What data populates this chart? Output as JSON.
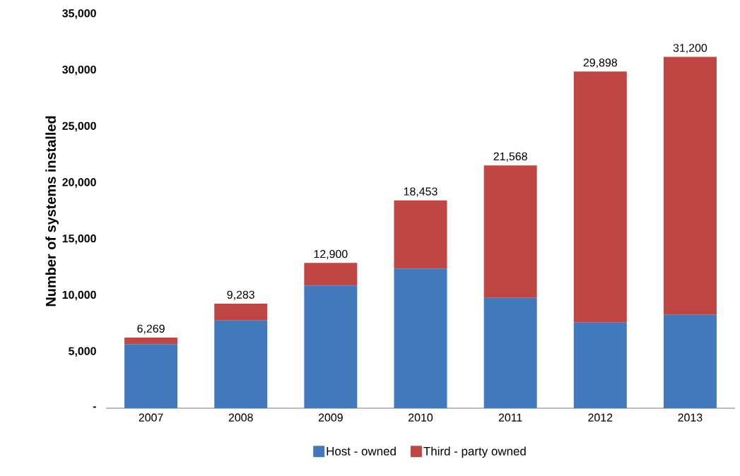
{
  "chart_data": {
    "type": "bar",
    "stacked": true,
    "categories": [
      "2007",
      "2008",
      "2009",
      "2010",
      "2011",
      "2012",
      "2013"
    ],
    "ylabel": "Number of systems installed",
    "series": [
      {
        "name": "Host - owned",
        "color": "#4279bd",
        "values": [
          5700,
          7800,
          10900,
          12400,
          9800,
          7600,
          8300
        ]
      },
      {
        "name": "Third - party owned",
        "color": "#c04643",
        "values": [
          569,
          1483,
          2000,
          6053,
          11768,
          22298,
          22900
        ]
      }
    ],
    "totals": [
      "6,269",
      "9,283",
      "12,900",
      "18,453",
      "21,568",
      "29,898",
      "31,200"
    ],
    "ylim": [
      0,
      35000
    ],
    "yticks": [
      {
        "value": 0,
        "label": "-"
      },
      {
        "value": 5000,
        "label": "5,000"
      },
      {
        "value": 10000,
        "label": "10,000"
      },
      {
        "value": 15000,
        "label": "15,000"
      },
      {
        "value": 20000,
        "label": "20,000"
      },
      {
        "value": 25000,
        "label": "25,000"
      },
      {
        "value": 30000,
        "label": "30,000"
      },
      {
        "value": 35000,
        "label": "35,000"
      }
    ],
    "legend": "bottom"
  }
}
